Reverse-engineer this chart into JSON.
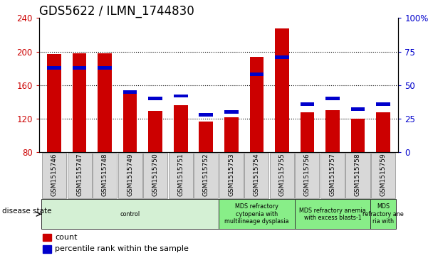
{
  "title": "GDS5622 / ILMN_1744830",
  "categories": [
    "GSM1515746",
    "GSM1515747",
    "GSM1515748",
    "GSM1515749",
    "GSM1515750",
    "GSM1515751",
    "GSM1515752",
    "GSM1515753",
    "GSM1515754",
    "GSM1515755",
    "GSM1515756",
    "GSM1515757",
    "GSM1515758",
    "GSM1515759"
  ],
  "count_values": [
    197,
    198,
    198,
    153,
    129,
    136,
    117,
    122,
    194,
    228,
    128,
    130,
    120,
    128
  ],
  "percentile_values": [
    63,
    63,
    63,
    45,
    40,
    42,
    28,
    30,
    58,
    71,
    36,
    40,
    32,
    36
  ],
  "ylim_left": [
    80,
    240
  ],
  "ylim_right": [
    0,
    100
  ],
  "yticks_left": [
    80,
    120,
    160,
    200,
    240
  ],
  "yticks_right": [
    0,
    25,
    50,
    75,
    100
  ],
  "bar_color": "#cc0000",
  "percentile_color": "#0000cc",
  "bar_bottom": 80,
  "disease_groups": [
    {
      "label": "control",
      "start": 0,
      "end": 7,
      "color": "#d4f0d4"
    },
    {
      "label": "MDS refractory\ncytopenia with\nmultilineage dysplasia",
      "start": 7,
      "end": 10,
      "color": "#88ee88"
    },
    {
      "label": "MDS refractory anemia\nwith excess blasts-1",
      "start": 10,
      "end": 13,
      "color": "#88ee88"
    },
    {
      "label": "MDS\nrefractory ane\nria with",
      "start": 13,
      "end": 14,
      "color": "#88ee88"
    }
  ],
  "disease_state_label": "disease state",
  "legend_items": [
    {
      "label": "count",
      "color": "#cc0000"
    },
    {
      "label": "percentile rank within the sample",
      "color": "#0000cc"
    }
  ],
  "grid_color": "#555555",
  "bar_width": 0.55,
  "title_fontsize": 12,
  "tick_fontsize": 8.5,
  "label_fontsize": 8
}
